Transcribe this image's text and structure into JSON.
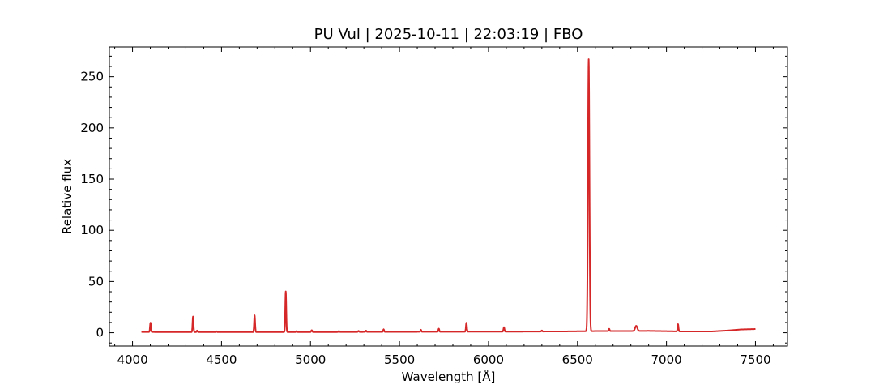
{
  "chart_data": {
    "type": "line",
    "title": "PU Vul | 2025-10-11 | 22:03:19 | FBO",
    "xlabel": "Wavelength [Å]",
    "ylabel": "Relative flux",
    "xlim": [
      3870,
      7680
    ],
    "ylim": [
      -13,
      279
    ],
    "x_ticks": [
      4000,
      4500,
      5000,
      5500,
      6000,
      6500,
      7000,
      7500
    ],
    "y_ticks": [
      0,
      50,
      100,
      150,
      200,
      250
    ],
    "grid": false,
    "series": [
      {
        "color": "#d62728",
        "continuum": [
          [
            4050,
            0.8
          ],
          [
            4200,
            0.6
          ],
          [
            4400,
            0.6
          ],
          [
            4600,
            0.6
          ],
          [
            4800,
            0.7
          ],
          [
            5000,
            0.6
          ],
          [
            5300,
            0.8
          ],
          [
            5600,
            0.9
          ],
          [
            5900,
            1.0
          ],
          [
            6200,
            1.1
          ],
          [
            6450,
            1.3
          ],
          [
            6600,
            1.6
          ],
          [
            6750,
            1.6
          ],
          [
            6900,
            1.8
          ],
          [
            7100,
            1.2
          ],
          [
            7250,
            1.2
          ],
          [
            7350,
            2.2
          ],
          [
            7420,
            3.2
          ],
          [
            7500,
            3.6
          ]
        ],
        "lines": [
          {
            "center": 4101,
            "peak": 9.0,
            "width": 2.5
          },
          {
            "center": 4340,
            "peak": 15.2,
            "width": 2.5
          },
          {
            "center": 4363,
            "peak": 1.5,
            "width": 2.5
          },
          {
            "center": 4471,
            "peak": 0.8,
            "width": 2.5
          },
          {
            "center": 4686,
            "peak": 16.3,
            "width": 2.6
          },
          {
            "center": 4861,
            "peak": 39.6,
            "width": 2.6
          },
          {
            "center": 4922,
            "peak": 1.0,
            "width": 2.5
          },
          {
            "center": 5007,
            "peak": 1.8,
            "width": 3.0
          },
          {
            "center": 5160,
            "peak": 1.0,
            "width": 2.5
          },
          {
            "center": 5270,
            "peak": 1.0,
            "width": 2.5
          },
          {
            "center": 5312,
            "peak": 1.2,
            "width": 2.5
          },
          {
            "center": 5411,
            "peak": 2.5,
            "width": 2.5
          },
          {
            "center": 5620,
            "peak": 2.0,
            "width": 2.5
          },
          {
            "center": 5721,
            "peak": 3.0,
            "width": 2.5
          },
          {
            "center": 5876,
            "peak": 8.7,
            "width": 2.6
          },
          {
            "center": 6087,
            "peak": 4.3,
            "width": 2.6
          },
          {
            "center": 6300,
            "peak": 1.0,
            "width": 2.5
          },
          {
            "center": 6563,
            "peak": 265.5,
            "width": 4.0
          },
          {
            "center": 6678,
            "peak": 2.2,
            "width": 2.5
          },
          {
            "center": 6830,
            "peak": 5.0,
            "width": 6.0
          },
          {
            "center": 7065,
            "peak": 7.0,
            "width": 2.5
          }
        ]
      }
    ]
  }
}
